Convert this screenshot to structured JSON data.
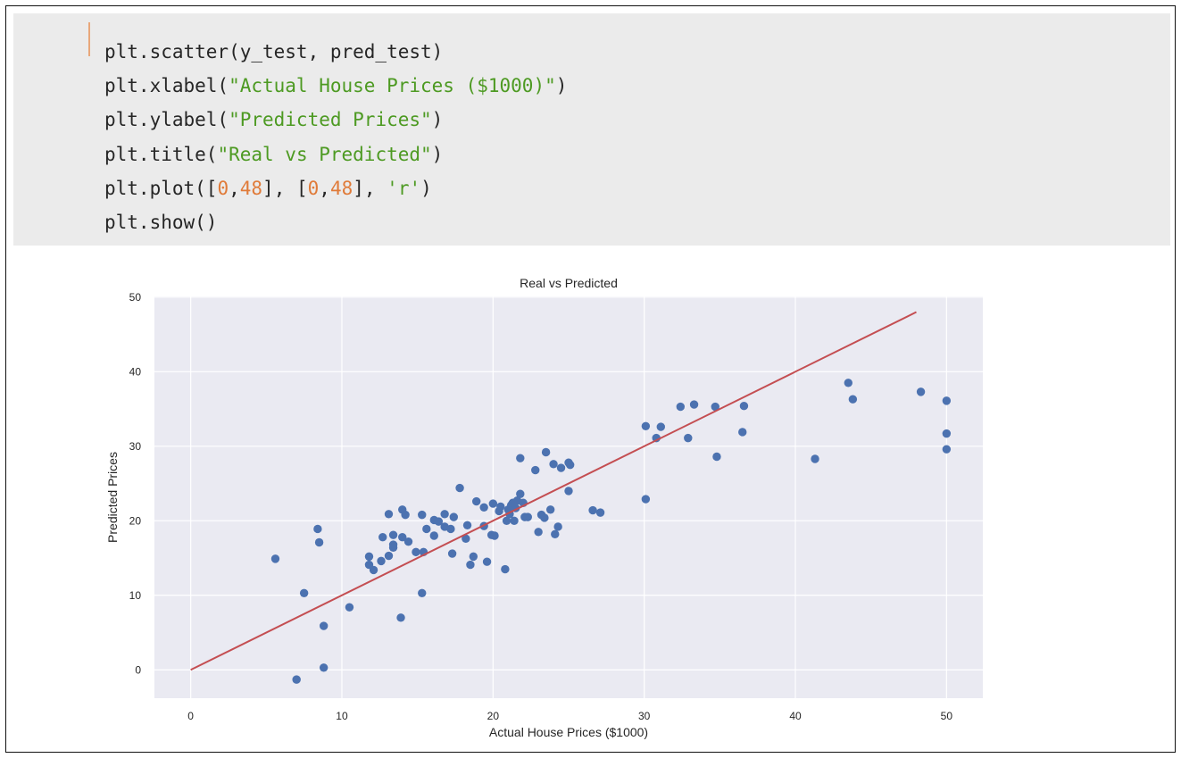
{
  "code_cell": {
    "lines": [
      [
        {
          "t": "plt.scatter(y_test, pred_test)",
          "k": "plain"
        }
      ],
      [
        {
          "t": "plt.xlabel(",
          "k": "plain"
        },
        {
          "t": "\"Actual House Prices ($1000)\"",
          "k": "str"
        },
        {
          "t": ")",
          "k": "plain"
        }
      ],
      [
        {
          "t": "plt.ylabel(",
          "k": "plain"
        },
        {
          "t": "\"Predicted Prices\"",
          "k": "str"
        },
        {
          "t": ")",
          "k": "plain"
        }
      ],
      [
        {
          "t": "plt.title(",
          "k": "plain"
        },
        {
          "t": "\"Real vs Predicted\"",
          "k": "str"
        },
        {
          "t": ")",
          "k": "plain"
        }
      ],
      [
        {
          "t": "plt.plot([",
          "k": "plain"
        },
        {
          "t": "0",
          "k": "num"
        },
        {
          "t": ",",
          "k": "plain"
        },
        {
          "t": "48",
          "k": "num"
        },
        {
          "t": "], [",
          "k": "plain"
        },
        {
          "t": "0",
          "k": "num"
        },
        {
          "t": ",",
          "k": "plain"
        },
        {
          "t": "48",
          "k": "num"
        },
        {
          "t": "], ",
          "k": "plain"
        },
        {
          "t": "'r'",
          "k": "str"
        },
        {
          "t": ")",
          "k": "plain"
        }
      ],
      [
        {
          "t": "plt.show()",
          "k": "plain"
        }
      ]
    ]
  },
  "chart_data": {
    "type": "scatter",
    "title": "Real vs Predicted",
    "xlabel": "Actual House Prices ($1000)",
    "ylabel": "Predicted Prices",
    "xlim": [
      -2.4,
      52.4
    ],
    "ylim": [
      -3.8,
      50.1
    ],
    "xticks": [
      0,
      10,
      20,
      30,
      40,
      50
    ],
    "yticks": [
      0,
      10,
      20,
      30,
      40,
      50
    ],
    "grid": true,
    "background_color": "#eaeaf2",
    "point_color": "#4c72b0",
    "line_color": "#c44e52",
    "reference_line": {
      "x": [
        0,
        48
      ],
      "y": [
        0,
        48
      ]
    },
    "points": [
      [
        5.6,
        14.9
      ],
      [
        7.0,
        -1.3
      ],
      [
        7.5,
        10.3
      ],
      [
        8.4,
        18.9
      ],
      [
        8.5,
        17.1
      ],
      [
        8.8,
        5.9
      ],
      [
        8.8,
        0.3
      ],
      [
        10.5,
        8.4
      ],
      [
        11.8,
        14.1
      ],
      [
        11.8,
        15.2
      ],
      [
        12.1,
        13.4
      ],
      [
        12.6,
        14.6
      ],
      [
        12.7,
        17.8
      ],
      [
        13.1,
        20.9
      ],
      [
        13.1,
        15.3
      ],
      [
        13.4,
        16.4
      ],
      [
        13.4,
        16.8
      ],
      [
        13.4,
        18.1
      ],
      [
        13.9,
        7.0
      ],
      [
        14.0,
        21.5
      ],
      [
        14.0,
        17.8
      ],
      [
        14.2,
        20.8
      ],
      [
        14.4,
        17.2
      ],
      [
        14.9,
        15.8
      ],
      [
        15.3,
        20.8
      ],
      [
        15.3,
        10.3
      ],
      [
        15.4,
        15.8
      ],
      [
        15.6,
        18.9
      ],
      [
        16.1,
        18.0
      ],
      [
        16.1,
        20.1
      ],
      [
        16.4,
        19.9
      ],
      [
        16.8,
        20.9
      ],
      [
        16.8,
        19.2
      ],
      [
        17.2,
        18.9
      ],
      [
        17.3,
        15.6
      ],
      [
        17.4,
        20.5
      ],
      [
        17.8,
        24.4
      ],
      [
        18.2,
        17.6
      ],
      [
        18.3,
        19.4
      ],
      [
        18.5,
        14.1
      ],
      [
        18.7,
        15.2
      ],
      [
        18.9,
        22.6
      ],
      [
        19.4,
        19.3
      ],
      [
        19.4,
        21.8
      ],
      [
        19.6,
        14.5
      ],
      [
        19.9,
        18.1
      ],
      [
        20.0,
        22.3
      ],
      [
        20.1,
        18.0
      ],
      [
        20.4,
        21.3
      ],
      [
        20.5,
        21.9
      ],
      [
        20.8,
        13.5
      ],
      [
        20.9,
        20.0
      ],
      [
        21.0,
        21.5
      ],
      [
        21.1,
        20.9
      ],
      [
        21.2,
        22.1
      ],
      [
        21.3,
        22.4
      ],
      [
        21.4,
        20.0
      ],
      [
        21.5,
        21.7
      ],
      [
        21.6,
        22.7
      ],
      [
        21.8,
        23.6
      ],
      [
        21.8,
        28.4
      ],
      [
        22.0,
        22.4
      ],
      [
        22.1,
        20.5
      ],
      [
        22.3,
        20.5
      ],
      [
        22.8,
        26.8
      ],
      [
        23.0,
        18.5
      ],
      [
        23.2,
        20.8
      ],
      [
        23.4,
        20.4
      ],
      [
        23.5,
        29.2
      ],
      [
        23.8,
        21.5
      ],
      [
        24.0,
        27.6
      ],
      [
        24.1,
        18.2
      ],
      [
        24.3,
        19.2
      ],
      [
        24.5,
        27.1
      ],
      [
        25.0,
        27.8
      ],
      [
        25.0,
        24.0
      ],
      [
        25.1,
        27.5
      ],
      [
        26.6,
        21.4
      ],
      [
        27.1,
        21.1
      ],
      [
        30.1,
        32.7
      ],
      [
        30.1,
        22.9
      ],
      [
        30.8,
        31.1
      ],
      [
        31.1,
        32.6
      ],
      [
        32.4,
        35.3
      ],
      [
        32.9,
        31.1
      ],
      [
        33.3,
        35.6
      ],
      [
        34.7,
        35.3
      ],
      [
        34.8,
        28.6
      ],
      [
        36.5,
        31.9
      ],
      [
        36.6,
        35.4
      ],
      [
        41.3,
        28.3
      ],
      [
        43.5,
        38.5
      ],
      [
        43.8,
        36.3
      ],
      [
        48.3,
        37.3
      ],
      [
        50.0,
        36.1
      ],
      [
        50.0,
        31.7
      ],
      [
        50.0,
        29.6
      ]
    ]
  }
}
